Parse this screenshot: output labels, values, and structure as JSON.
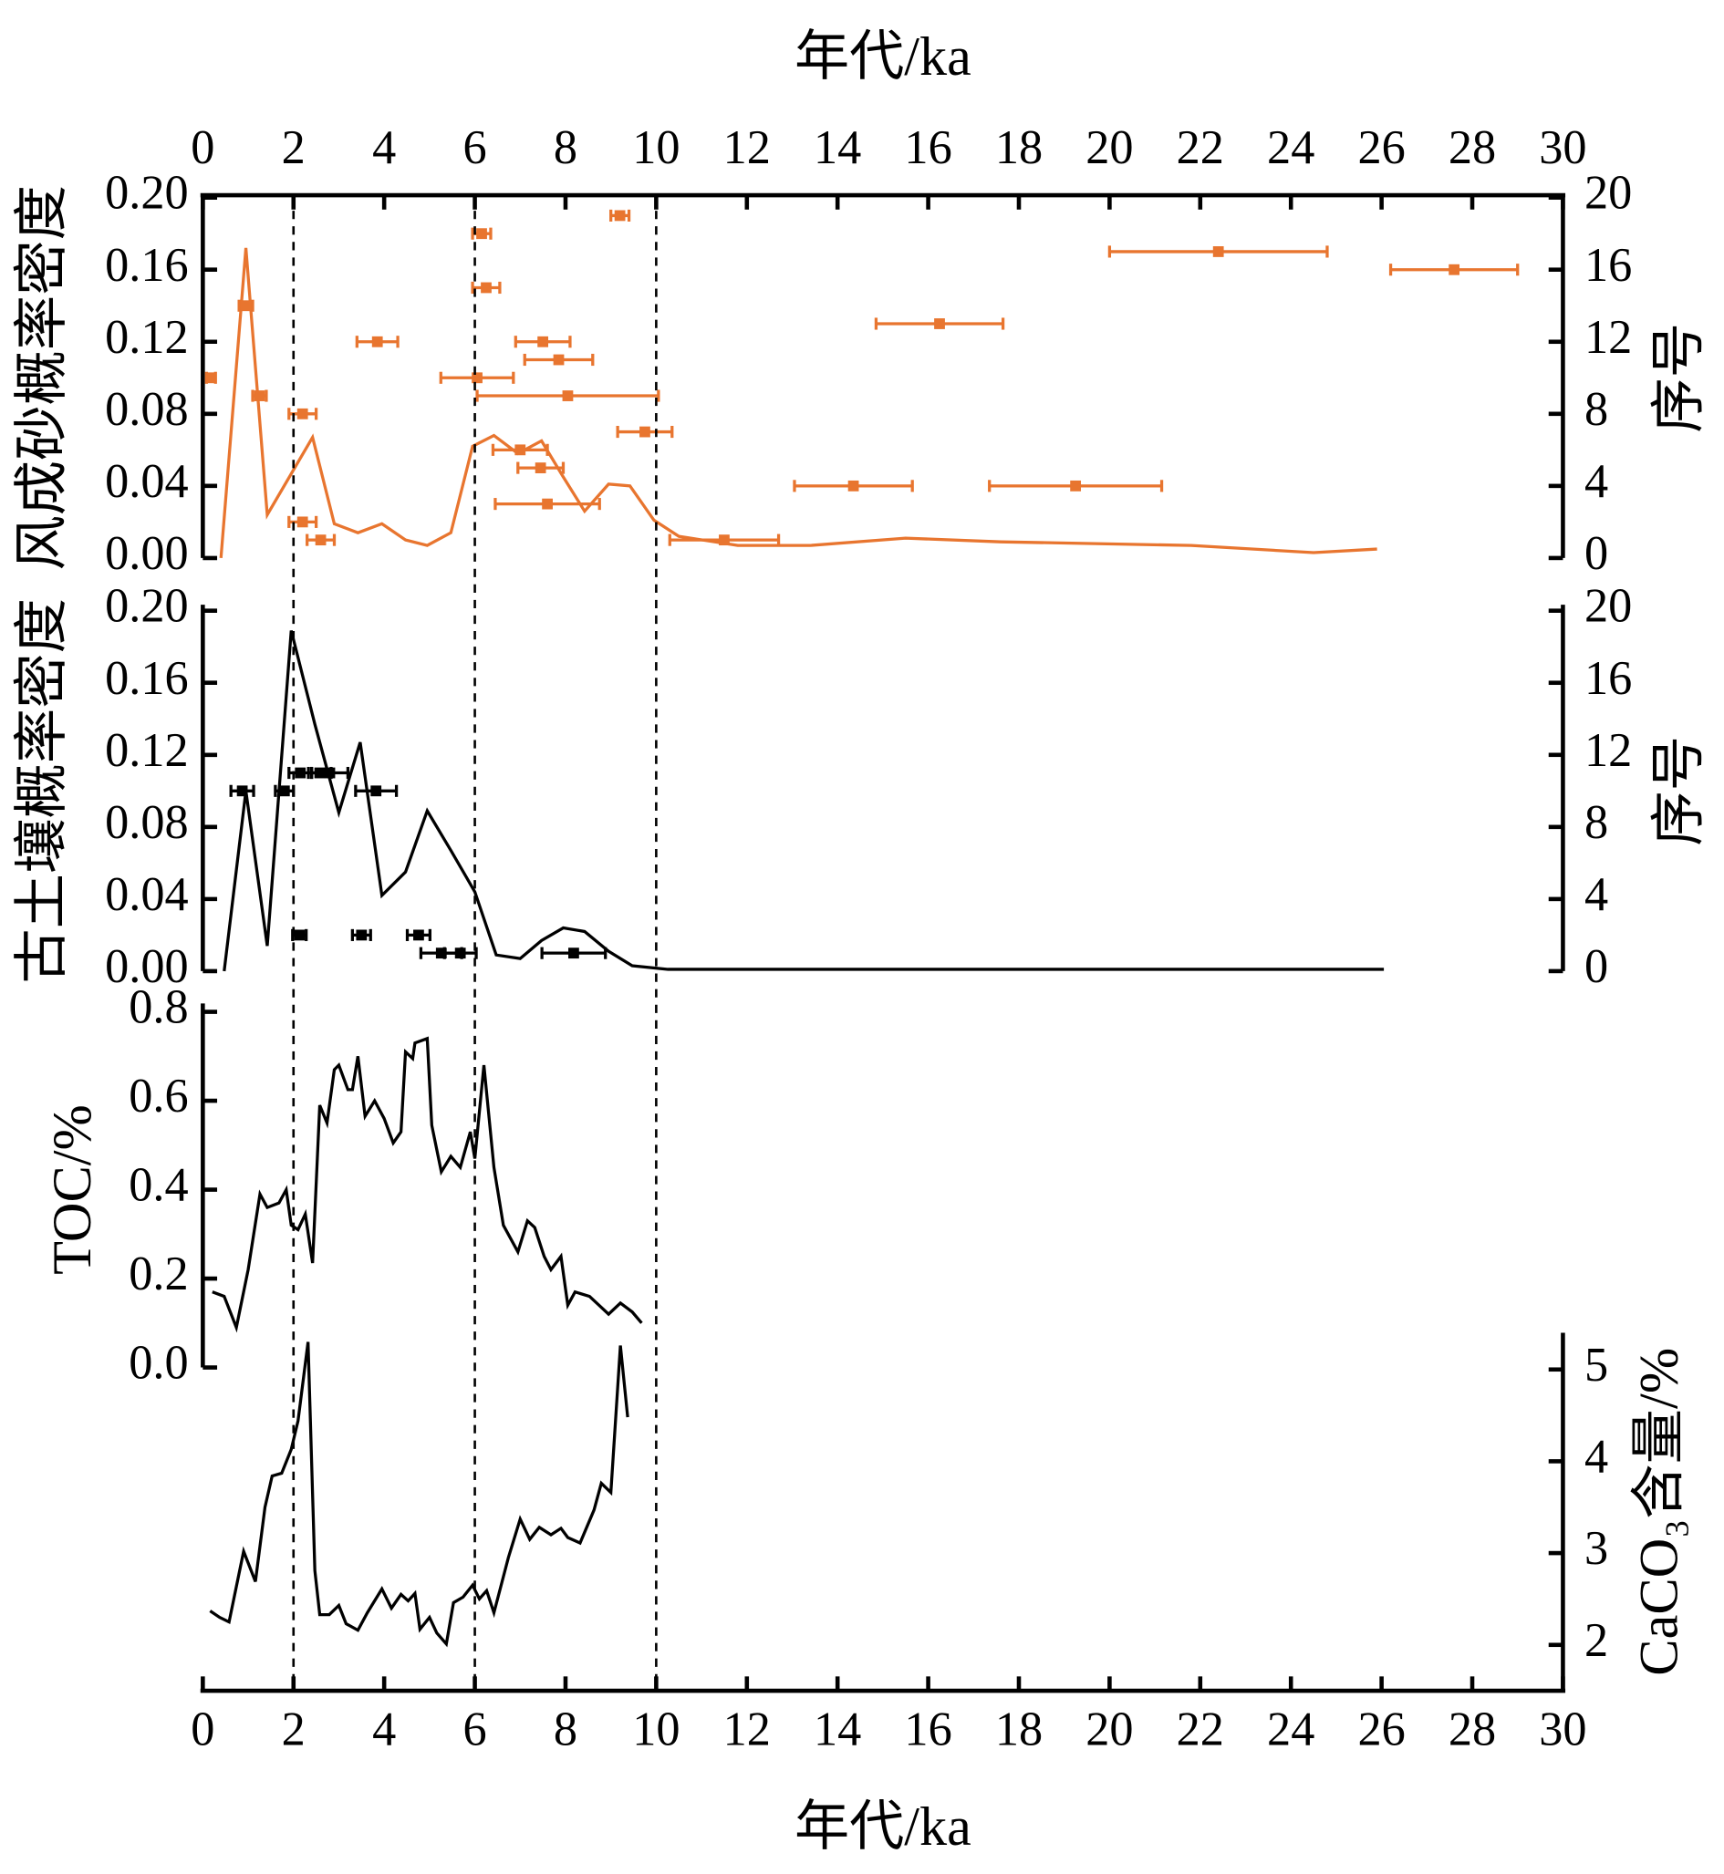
{
  "chart_data": [
    {
      "type": "line",
      "xlabel": "年代/ka",
      "ylabel": "风成砂概率密度",
      "y2label": "序号",
      "xlim": [
        0,
        30
      ],
      "xticks": [
        0,
        2,
        4,
        6,
        8,
        10,
        12,
        14,
        16,
        18,
        20,
        22,
        24,
        26,
        28,
        30
      ],
      "ylim": [
        0,
        0.2
      ],
      "yticks": [
        {
          "value": 0,
          "label": "0.00"
        },
        0.04,
        0.08,
        0.12,
        0.16,
        {
          "value": 0.2,
          "label": "0.20"
        }
      ],
      "y2lim": [
        0,
        20
      ],
      "y2ticks": [
        0,
        4,
        8,
        12,
        16,
        20
      ],
      "vlines": [
        2,
        6,
        10
      ],
      "series": [
        {
          "kind": "line",
          "color": "#e8752f",
          "x": [
            0.4,
            0.95,
            1.42,
            2.42,
            2.9,
            3.42,
            3.95,
            4.47,
            4.95,
            5.47,
            5.95,
            6.42,
            6.95,
            7.47,
            7.95,
            8.42,
            8.95,
            9.42,
            9.95,
            10.5,
            11.8,
            13.4,
            15.5,
            17.6,
            21.8,
            24.5,
            25.9
          ],
          "values": [
            0,
            0.172,
            0.024,
            0.067,
            0.019,
            0.014,
            0.019,
            0.01,
            0.007,
            0.014,
            0.062,
            0.068,
            0.058,
            0.065,
            0.045,
            0.026,
            0.041,
            0.04,
            0.021,
            0.012,
            0.007,
            0.007,
            0.011,
            0.009,
            0.007,
            0.003,
            0.005
          ]
        },
        {
          "kind": "errorbar",
          "color": "#e8752f",
          "axis": "y2",
          "x": [
            0.18,
            0.95,
            1.25,
            2.2,
            2.2,
            2.6,
            3.85,
            6.05,
            6.15,
            6.25,
            7.0,
            7.5,
            7.85,
            7.45,
            8.05,
            7.6,
            9.2,
            9.75,
            11.5,
            14.35,
            16.25,
            19.25,
            22.4,
            27.6
          ],
          "values": [
            10,
            14,
            9,
            8,
            2,
            1,
            12,
            10,
            18,
            15,
            6,
            12,
            11,
            5,
            9,
            3,
            19,
            7,
            1,
            4,
            13,
            4,
            17,
            16
          ],
          "xerr": [
            0.1,
            0.15,
            0.15,
            0.3,
            0.3,
            0.3,
            0.45,
            0.8,
            0.2,
            0.3,
            0.6,
            0.6,
            0.75,
            0.5,
            2.0,
            1.15,
            0.2,
            0.6,
            1.2,
            1.3,
            1.4,
            1.9,
            2.4,
            1.4
          ]
        }
      ]
    },
    {
      "type": "line",
      "ylabel": "古土壤概率密度",
      "y2label": "序号",
      "ylim": [
        0,
        0.2
      ],
      "yticks": [
        {
          "value": 0,
          "label": "0.00"
        },
        0.04,
        0.08,
        0.12,
        0.16,
        {
          "value": 0.2,
          "label": "0.20"
        }
      ],
      "y2lim": [
        0,
        20
      ],
      "y2ticks": [
        0,
        4,
        8,
        12,
        16,
        20
      ],
      "series": [
        {
          "kind": "line",
          "color": "#000000",
          "x": [
            0.47,
            0.95,
            1.42,
            1.95,
            2.47,
            3.0,
            3.47,
            3.95,
            4.47,
            4.95,
            5.47,
            6.0,
            6.47,
            7.0,
            7.47,
            7.95,
            8.42,
            8.95,
            9.47,
            10.26,
            26.05
          ],
          "values": [
            0,
            0.1,
            0.014,
            0.189,
            0.137,
            0.088,
            0.127,
            0.042,
            0.055,
            0.089,
            0.067,
            0.044,
            0.009,
            0.007,
            0.017,
            0.024,
            0.022,
            0.011,
            0.003,
            0.001,
            0.001
          ]
        },
        {
          "kind": "errorbar",
          "color": "#000000",
          "axis": "y2",
          "x": [
            0.87,
            1.8,
            2.15,
            2.58,
            2.8,
            3.82,
            2.13,
            3.5,
            4.76,
            5.26,
            5.68,
            8.18
          ],
          "values": [
            10,
            10,
            11,
            11,
            11,
            10,
            2,
            2,
            2,
            1,
            1,
            1
          ],
          "xerr": [
            0.25,
            0.2,
            0.25,
            0.25,
            0.4,
            0.45,
            0.15,
            0.2,
            0.25,
            0.45,
            0.35,
            0.7
          ]
        }
      ]
    },
    {
      "type": "line",
      "ylabel": "TOC/%",
      "ylim": [
        0,
        0.8
      ],
      "yticks": [
        {
          "value": 0,
          "label": "0.0"
        },
        0.2,
        0.4,
        0.6,
        0.8
      ],
      "series": [
        {
          "kind": "line",
          "color": "#000000",
          "x": [
            0.21,
            0.47,
            0.74,
            1.0,
            1.26,
            1.42,
            1.68,
            1.84,
            1.95,
            2.1,
            2.26,
            2.42,
            2.58,
            2.74,
            2.9,
            3.0,
            3.2,
            3.3,
            3.42,
            3.58,
            3.79,
            4.0,
            4.2,
            4.37,
            4.47,
            4.63,
            4.68,
            4.95,
            5.05,
            5.26,
            5.47,
            5.68,
            5.9,
            6.0,
            6.2,
            6.42,
            6.63,
            6.95,
            7.16,
            7.32,
            7.53,
            7.68,
            7.9,
            8.05,
            8.21,
            8.53,
            8.74,
            8.95,
            9.21,
            9.47,
            9.68
          ],
          "values": [
            0.17,
            0.16,
            0.09,
            0.22,
            0.39,
            0.36,
            0.37,
            0.4,
            0.32,
            0.31,
            0.345,
            0.235,
            0.59,
            0.55,
            0.67,
            0.68,
            0.625,
            0.625,
            0.7,
            0.565,
            0.6,
            0.56,
            0.505,
            0.53,
            0.71,
            0.695,
            0.73,
            0.74,
            0.545,
            0.44,
            0.475,
            0.45,
            0.53,
            0.47,
            0.68,
            0.45,
            0.32,
            0.26,
            0.33,
            0.315,
            0.25,
            0.22,
            0.25,
            0.14,
            0.17,
            0.16,
            0.14,
            0.12,
            0.145,
            0.125,
            0.1
          ]
        }
      ]
    },
    {
      "type": "line",
      "xlabel": "年代/ka",
      "y2label": "CaCO₃含量/%",
      "xlim": [
        0,
        30
      ],
      "xticks": [
        0,
        2,
        4,
        6,
        8,
        10,
        12,
        14,
        16,
        18,
        20,
        22,
        24,
        26,
        28,
        30
      ],
      "y2lim": [
        1.5,
        5.4
      ],
      "y2ticks": [
        2,
        3,
        4,
        5
      ],
      "series": [
        {
          "kind": "line",
          "color": "#000000",
          "axis": "y2",
          "x": [
            0.16,
            0.37,
            0.58,
            0.9,
            1.16,
            1.37,
            1.53,
            1.74,
            1.95,
            2.1,
            2.32,
            2.47,
            2.58,
            2.79,
            3.0,
            3.16,
            3.42,
            3.63,
            3.95,
            4.16,
            4.37,
            4.53,
            4.68,
            4.79,
            5.0,
            5.16,
            5.37,
            5.53,
            5.74,
            5.95,
            6.1,
            6.26,
            6.42,
            6.74,
            7.0,
            7.21,
            7.42,
            7.68,
            7.9,
            8.05,
            8.32,
            8.63,
            8.79,
            9.0,
            9.21,
            9.37
          ],
          "values": [
            2.37,
            2.3,
            2.25,
            3.02,
            2.69,
            3.5,
            3.84,
            3.87,
            4.13,
            4.44,
            5.3,
            2.81,
            2.33,
            2.33,
            2.43,
            2.23,
            2.16,
            2.35,
            2.61,
            2.4,
            2.55,
            2.48,
            2.56,
            2.17,
            2.3,
            2.13,
            2.01,
            2.46,
            2.52,
            2.65,
            2.5,
            2.59,
            2.35,
            2.95,
            3.37,
            3.15,
            3.28,
            3.2,
            3.27,
            3.17,
            3.11,
            3.47,
            3.76,
            3.66,
            5.26,
            4.48
          ]
        }
      ]
    }
  ]
}
